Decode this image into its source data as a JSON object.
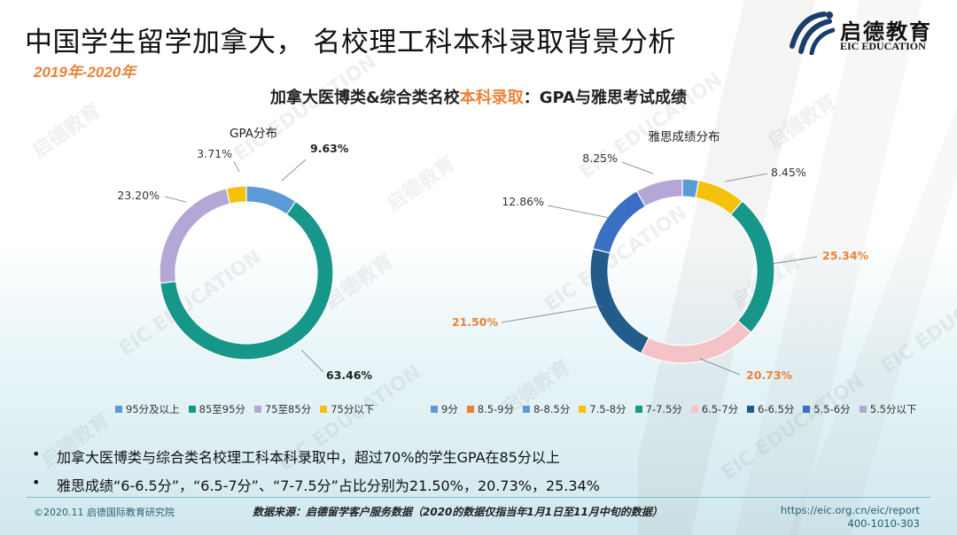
{
  "page": {
    "title": "中国学生留学加拿大， 名校理工科本科录取背景分析",
    "subtitle": "2019年-2020年",
    "logo_cn": "启德教育",
    "logo_en": "EIC EDUCATION",
    "watermark_cn": "启德教育",
    "watermark_en": "EIC EDUCATION",
    "heading_prefix": "加拿大医博类&综合类名校",
    "heading_highlight": "本科录取",
    "heading_suffix": "：GPA与雅思考试成绩",
    "bullets": [
      "加拿大医博类与综合类名校理工科本科录取中，超过70%的学生GPA在85分以上",
      "雅思成绩“6-6.5分”，“6.5-7分”、“7-7.5分”占比分别为21.50%，20.73%，25.34%"
    ],
    "bullet_mark": "•",
    "footer_copyright": "©2020.11 启德国际教育研究院",
    "footer_source": "数据来源：启德留学客户服务数据（2020的数据仅指当年1月1日至11月中旬的数据）",
    "footer_url": "https://eic.org.cn/eic/report",
    "footer_phone": "400-1010-303",
    "colors": {
      "accent": "#e8833a",
      "teal": "#17968a"
    }
  },
  "chart_data": [
    {
      "type": "pie",
      "donut": true,
      "title": "GPA分布",
      "categories": [
        "95分及以上",
        "85至95分",
        "75至85分",
        "75分以下"
      ],
      "values": [
        9.63,
        63.46,
        23.2,
        3.71
      ],
      "labels": [
        "9.63%",
        "63.46%",
        "23.20%",
        "3.71%"
      ],
      "label_emphasis": [
        true,
        true,
        false,
        false
      ],
      "colors": [
        "#5b9bd5",
        "#17968a",
        "#b4a7d6",
        "#f4c20d"
      ],
      "legend": "bottom"
    },
    {
      "type": "pie",
      "donut": true,
      "title": "雅思成绩分布",
      "categories": [
        "9分",
        "8.5-9分",
        "8-8.5分",
        "7.5-8分",
        "7-7.5分",
        "6.5-7分",
        "6-6.5分",
        "5.5-6分",
        "5.5分以下"
      ],
      "values": [
        0,
        0,
        2.84,
        8.45,
        25.34,
        20.73,
        21.5,
        12.86,
        8.25
      ],
      "labels": [
        "",
        "",
        "",
        "8.45%",
        "25.34%",
        "20.73%",
        "21.50%",
        "12.86%",
        "8.25%"
      ],
      "label_emphasis": [
        false,
        false,
        false,
        false,
        true,
        true,
        true,
        false,
        false
      ],
      "colors": [
        "#5b9bd5",
        "#ed7d31",
        "#5b9bd5",
        "#f4c20d",
        "#17968a",
        "#f4c3c7",
        "#225c8a",
        "#3b6fc4",
        "#b4a7d6"
      ],
      "legend": "bottom"
    }
  ]
}
